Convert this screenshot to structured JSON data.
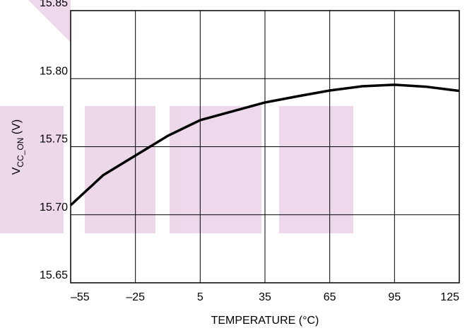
{
  "chart_data": {
    "type": "line",
    "x_label": "TEMPERATURE (°C)",
    "y_label": {
      "main": "V",
      "sub": "CC_ON",
      "unit": " (V)"
    },
    "x": [
      -55,
      -40,
      -25,
      -10,
      5,
      20,
      35,
      50,
      65,
      80,
      95,
      110,
      125
    ],
    "series": [
      {
        "name": "VCC_ON",
        "color": "#000000",
        "values": [
          15.707,
          15.729,
          15.7435,
          15.758,
          15.7695,
          15.776,
          15.7825,
          15.787,
          15.7913,
          15.7944,
          15.7955,
          15.794,
          15.791
        ]
      }
    ],
    "xlim": [
      -55,
      125
    ],
    "xticks": [
      {
        "value": -55,
        "label": "–55"
      },
      {
        "value": -25,
        "label": "–25"
      },
      5,
      35,
      65,
      95,
      125
    ],
    "ylim": [
      15.65,
      15.85
    ],
    "yticks": [
      15.65,
      {
        "value": 15.7,
        "label": "15.70"
      },
      15.75,
      {
        "value": 15.8,
        "label": "15.80"
      },
      15.85
    ],
    "grid": true
  }
}
